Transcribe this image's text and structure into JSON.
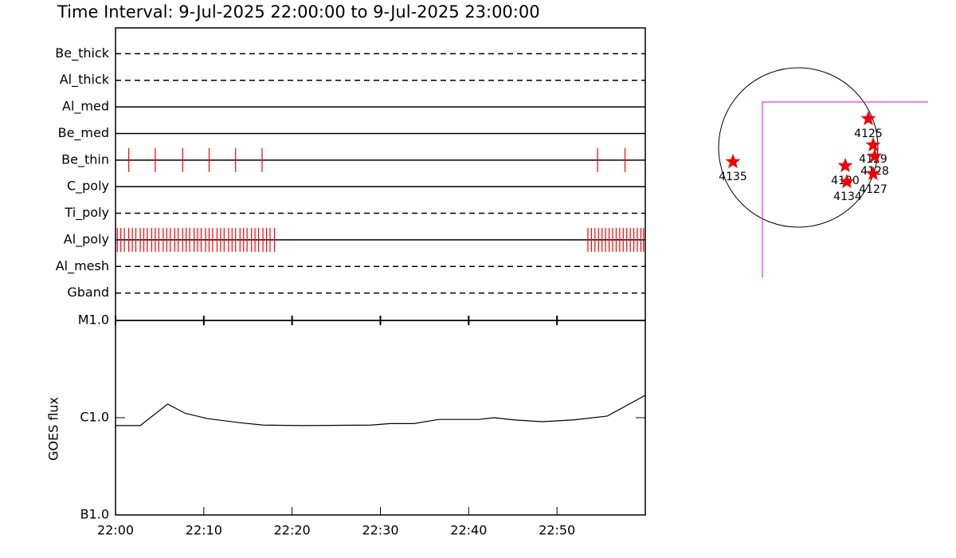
{
  "chart_data": [
    {
      "type": "timeline",
      "title": "Time Interval:  9-Jul-2025 22:00:00 to  9-Jul-2025 23:00:00",
      "xlim": [
        0,
        60
      ],
      "mark_color": "#ff0000",
      "series": [
        {
          "name": "Be_thick",
          "style": "dashed",
          "times": []
        },
        {
          "name": "Al_thick",
          "style": "dashed",
          "times": []
        },
        {
          "name": "Al_med",
          "style": "solid",
          "times": []
        },
        {
          "name": "Be_med",
          "style": "solid",
          "times": []
        },
        {
          "name": "Be_thin",
          "style": "solid",
          "times": [
            1.5,
            4.5,
            7.6,
            10.6,
            13.6,
            16.6,
            54.6,
            57.7
          ]
        },
        {
          "name": "C_poly",
          "style": "solid",
          "times": []
        },
        {
          "name": "Ti_poly",
          "style": "dashed",
          "times": []
        },
        {
          "name": "Al_poly",
          "style": "solid",
          "times": [
            0.2,
            0.6,
            1.0,
            1.5,
            1.9,
            2.3,
            2.8,
            3.2,
            3.6,
            4.1,
            4.5,
            4.9,
            5.4,
            5.8,
            6.2,
            6.7,
            7.1,
            7.6,
            8.0,
            8.4,
            8.9,
            9.3,
            9.7,
            10.2,
            10.6,
            11.0,
            11.5,
            11.9,
            12.3,
            12.8,
            13.2,
            13.6,
            14.1,
            14.5,
            14.9,
            15.4,
            15.8,
            16.2,
            16.7,
            17.1,
            17.5,
            18.0,
            53.5,
            53.9,
            54.3,
            54.7,
            55.1,
            55.5,
            55.9,
            56.3,
            56.7,
            57.1,
            57.5,
            57.9,
            58.3,
            58.7,
            59.1,
            59.5,
            59.8
          ]
        },
        {
          "name": "Al_mesh",
          "style": "dashed",
          "times": []
        },
        {
          "name": "Gband",
          "style": "dashed",
          "times": []
        }
      ]
    },
    {
      "type": "line",
      "ylabel": "GOES flux",
      "log_scale": true,
      "color": "#000000",
      "xlim": [
        0,
        60
      ],
      "xticks": [
        {
          "value": 0,
          "label": "22:00"
        },
        {
          "value": 10,
          "label": "22:10"
        },
        {
          "value": 20,
          "label": "22:20"
        },
        {
          "value": 30,
          "label": "22:30"
        },
        {
          "value": 40,
          "label": "22:40"
        },
        {
          "value": 50,
          "label": "22:50"
        }
      ],
      "ylim": [
        1e-07,
        1e-05
      ],
      "yticks": [
        {
          "value": 1e-07,
          "label": "B1.0"
        },
        {
          "value": 1e-06,
          "label": "C1.0"
        },
        {
          "value": 1e-05,
          "label": "M1.0"
        }
      ],
      "x": [
        0,
        2.8,
        5.9,
        7.9,
        10.4,
        14,
        16.7,
        21.2,
        28.9,
        31.1,
        33.8,
        36.6,
        41.1,
        42.9,
        45.1,
        48.3,
        51.9,
        55.7,
        60
      ],
      "values": [
        8.3e-07,
        8.3e-07,
        1.38e-06,
        1.11e-06,
        9.8e-07,
        8.9e-07,
        8.4e-07,
        8.3e-07,
        8.4e-07,
        8.7e-07,
        8.7e-07,
        9.6e-07,
        9.6e-07,
        1e-06,
        9.5e-07,
        9.1e-07,
        9.5e-07,
        1.04e-06,
        1.7e-06
      ]
    }
  ],
  "map": {
    "regions": [
      "4125",
      "4129",
      "4128",
      "4130",
      "4134",
      "4127",
      "4135"
    ]
  }
}
